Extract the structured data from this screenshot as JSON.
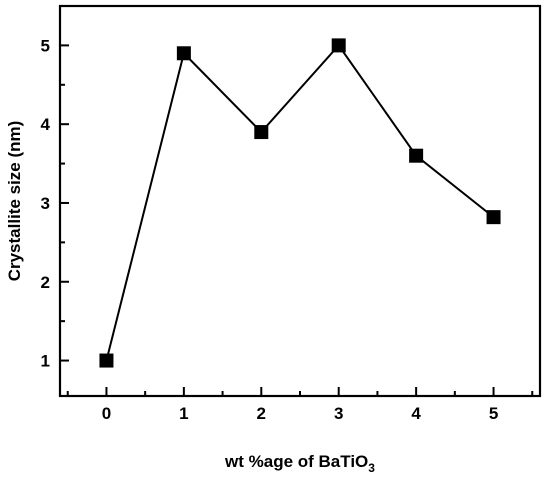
{
  "chart_data": {
    "type": "line",
    "title": "",
    "xlabel": "wt %age of BaTiO",
    "xlabel_subscript": "3",
    "ylabel": "Crystallite size (nm)",
    "x": [
      0,
      1,
      2,
      3,
      4,
      5
    ],
    "series": [
      {
        "values": [
          1.0,
          4.9,
          3.9,
          5.0,
          3.6,
          2.82
        ],
        "color": "#000000",
        "marker": "square"
      }
    ],
    "xlim": [
      -0.6,
      5.6
    ],
    "ylim": [
      0.55,
      5.5
    ],
    "xticks": [
      "0",
      "1",
      "2",
      "3",
      "4",
      "5"
    ],
    "yticks": [
      "1",
      "2",
      "3",
      "4",
      "5"
    ],
    "grid": false,
    "legend": "none"
  }
}
